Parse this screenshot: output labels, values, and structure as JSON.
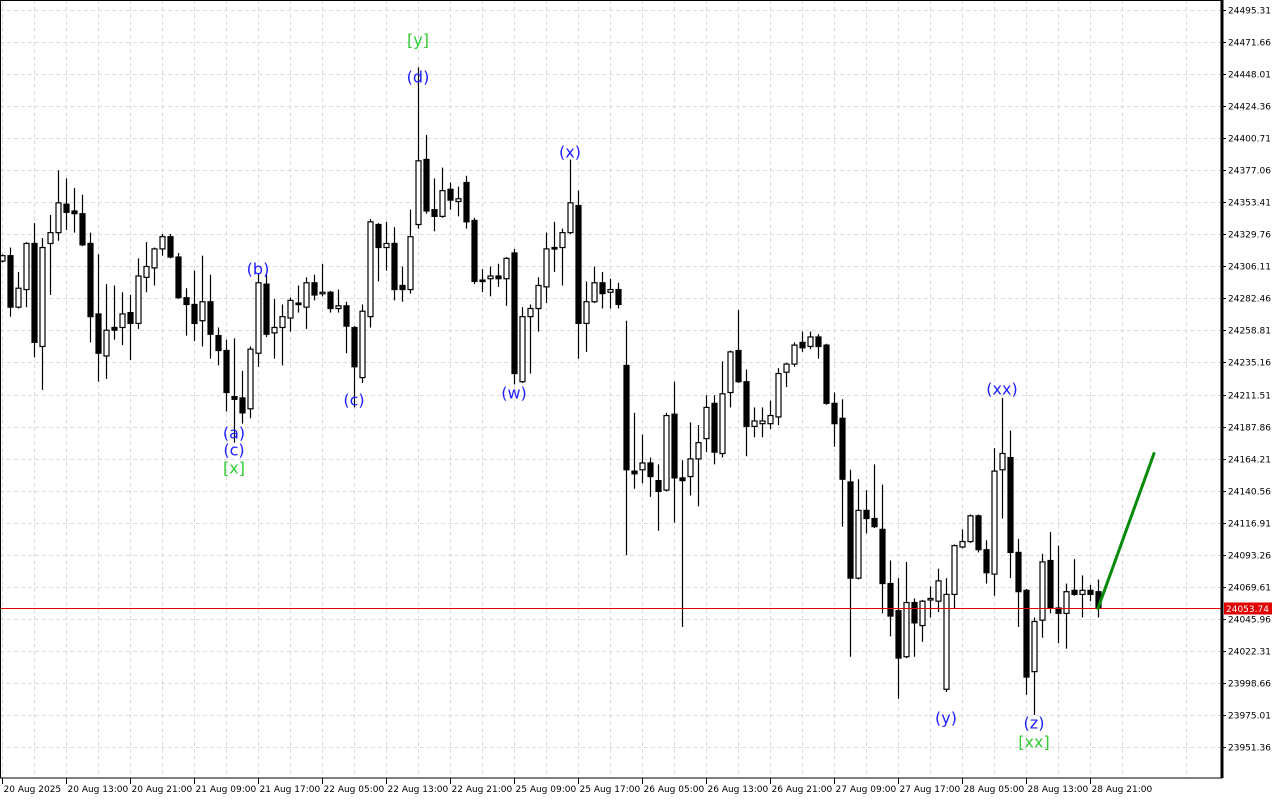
{
  "chart_data": {
    "type": "candlestick",
    "ylim": [
      23928.5,
      24502.7
    ],
    "grid": true,
    "colors": {
      "bull_body": "#ffffff",
      "bear_body": "#000000",
      "wick": "#000000",
      "grid": "#dcdcdc",
      "current_price_line": "#e00000",
      "forecast_line": "#0a8a0a",
      "wave_minor": "#2020ff",
      "wave_major": "#33cc33"
    },
    "y_ticks": [
      "24495.31",
      "24471.66",
      "24448.01",
      "24424.36",
      "24400.71",
      "24377.06",
      "24353.41",
      "24329.76",
      "24306.11",
      "24282.46",
      "24258.81",
      "24235.16",
      "24211.51",
      "24187.86",
      "24164.21",
      "24140.56",
      "24116.91",
      "24093.26",
      "24069.61",
      "24045.96",
      "24022.31",
      "23998.66",
      "23975.01",
      "23951.36"
    ],
    "x_ticks": [
      {
        "bar": 0,
        "label": "20 Aug 2025"
      },
      {
        "bar": 8,
        "label": "20 Aug 13:00"
      },
      {
        "bar": 16,
        "label": "20 Aug 21:00"
      },
      {
        "bar": 24,
        "label": "21 Aug 09:00"
      },
      {
        "bar": 32,
        "label": "21 Aug 17:00"
      },
      {
        "bar": 40,
        "label": "22 Aug 05:00"
      },
      {
        "bar": 48,
        "label": "22 Aug 13:00"
      },
      {
        "bar": 56,
        "label": "22 Aug 21:00"
      },
      {
        "bar": 64,
        "label": "25 Aug 09:00"
      },
      {
        "bar": 72,
        "label": "25 Aug 17:00"
      },
      {
        "bar": 80,
        "label": "26 Aug 05:00"
      },
      {
        "bar": 88,
        "label": "26 Aug 13:00"
      },
      {
        "bar": 96,
        "label": "26 Aug 21:00"
      },
      {
        "bar": 104,
        "label": "27 Aug 09:00"
      },
      {
        "bar": 112,
        "label": "27 Aug 17:00"
      },
      {
        "bar": 120,
        "label": "28 Aug 05:00"
      },
      {
        "bar": 128,
        "label": "28 Aug 13:00"
      },
      {
        "bar": 136,
        "label": "28 Aug 21:00"
      }
    ],
    "current_price": {
      "value": 24053.74,
      "label": "24053.74"
    },
    "forecast": {
      "from": {
        "bar": 137,
        "price": 24053.74
      },
      "to": {
        "bar": 144,
        "price": 24168
      }
    },
    "wave_labels": [
      {
        "text": "(a)",
        "bar": 29,
        "price": 24183.1,
        "level": "minor"
      },
      {
        "text": "(c)",
        "bar": 29,
        "price": 24170.6,
        "level": "minor"
      },
      {
        "text": "[x]",
        "bar": 29,
        "price": 24157.3,
        "level": "major"
      },
      {
        "text": "(b)",
        "bar": 32,
        "price": 24304.2,
        "level": "minor"
      },
      {
        "text": "(c)",
        "bar": 44,
        "price": 24207.5,
        "level": "minor"
      },
      {
        "text": "[y]",
        "bar": 52,
        "price": 24473.2,
        "level": "major"
      },
      {
        "text": "(d)",
        "bar": 52,
        "price": 24445.9,
        "level": "minor"
      },
      {
        "text": "(w)",
        "bar": 64,
        "price": 24212.6,
        "level": "minor"
      },
      {
        "text": "(x)",
        "bar": 71,
        "price": 24390.5,
        "level": "minor"
      },
      {
        "text": "(xx)",
        "bar": 125,
        "price": 24215.6,
        "level": "minor"
      },
      {
        "text": "(y)",
        "bar": 118,
        "price": 23972.7,
        "level": "minor"
      },
      {
        "text": "(z)",
        "bar": 129,
        "price": 23969.1,
        "level": "minor"
      },
      {
        "text": "[xx]",
        "bar": 129,
        "price": 23955.0,
        "level": "major"
      }
    ],
    "ohlc_fields": [
      "open",
      "high",
      "low",
      "close"
    ],
    "ohlc": [
      [
        24310,
        24315,
        24309,
        24314
      ],
      [
        24314,
        24320,
        24269,
        24276
      ],
      [
        24276,
        24302,
        24275,
        24290
      ],
      [
        24289,
        24324,
        24276,
        24323
      ],
      [
        24323,
        24338,
        24239,
        24250
      ],
      [
        24247,
        24327,
        24215,
        24320
      ],
      [
        24323,
        24344,
        24285,
        24331
      ],
      [
        24331,
        24377,
        24325,
        24353
      ],
      [
        24352,
        24371,
        24333,
        24346
      ],
      [
        24347,
        24364,
        24331,
        24345
      ],
      [
        24345,
        24359,
        24321,
        24322
      ],
      [
        24323,
        24331,
        24250,
        24269
      ],
      [
        24271,
        24315,
        24221,
        24242
      ],
      [
        24240,
        24293,
        24223,
        24259
      ],
      [
        24261,
        24292,
        24252,
        24259
      ],
      [
        24261,
        24287,
        24248,
        24271
      ],
      [
        24272,
        24285,
        24237,
        24264
      ],
      [
        24264,
        24312,
        24260,
        24299
      ],
      [
        24298,
        24324,
        24287,
        24306
      ],
      [
        24305,
        24320,
        24292,
        24319
      ],
      [
        24319,
        24330,
        24314,
        24328
      ],
      [
        24328,
        24330,
        24312,
        24313
      ],
      [
        24313,
        24316,
        24282,
        24283
      ],
      [
        24283,
        24290,
        24255,
        24278
      ],
      [
        24278,
        24303,
        24251,
        24264
      ],
      [
        24266,
        24314,
        24247,
        24280
      ],
      [
        24280,
        24300,
        24238,
        24256
      ],
      [
        24255,
        24261,
        24233,
        24244
      ],
      [
        24244,
        24252,
        24199,
        24213
      ],
      [
        24210,
        24253,
        24176,
        24208
      ],
      [
        24209,
        24229,
        24190,
        24198
      ],
      [
        24201,
        24247,
        24194,
        24245
      ],
      [
        24242,
        24301,
        24232,
        24294
      ],
      [
        24293,
        24300,
        24254,
        24256
      ],
      [
        24257,
        24282,
        24238,
        24261
      ],
      [
        24261,
        24278,
        24233,
        24269
      ],
      [
        24268,
        24283,
        24258,
        24281
      ],
      [
        24279,
        24292,
        24272,
        24278
      ],
      [
        24276,
        24298,
        24260,
        24294
      ],
      [
        24294,
        24300,
        24281,
        24285
      ],
      [
        24286,
        24308,
        24284,
        24287
      ],
      [
        24287,
        24288,
        24272,
        24275
      ],
      [
        24275,
        24289,
        24272,
        24277
      ],
      [
        24277,
        24280,
        24242,
        24262
      ],
      [
        24261,
        24262,
        24202,
        24232
      ],
      [
        24224,
        24278,
        24220,
        24273
      ],
      [
        24269,
        24341,
        24261,
        24339
      ],
      [
        24337,
        24338,
        24295,
        24320
      ],
      [
        24320,
        24339,
        24303,
        24323
      ],
      [
        24323,
        24335,
        24281,
        24289
      ],
      [
        24292,
        24306,
        24280,
        24289
      ],
      [
        24289,
        24348,
        24286,
        24328
      ],
      [
        24337,
        24453,
        24334,
        24384
      ],
      [
        24385,
        24403,
        24345,
        24347
      ],
      [
        24348,
        24371,
        24332,
        24343
      ],
      [
        24343,
        24379,
        24342,
        24362
      ],
      [
        24363,
        24368,
        24348,
        24355
      ],
      [
        24354,
        24365,
        24343,
        24356
      ],
      [
        24368,
        24373,
        24334,
        24339
      ],
      [
        24340,
        24342,
        24293,
        24295
      ],
      [
        24296,
        24304,
        24287,
        24295
      ],
      [
        24297,
        24306,
        24284,
        24299
      ],
      [
        24299,
        24308,
        24291,
        24297
      ],
      [
        24297,
        24313,
        24277,
        24312
      ],
      [
        24316,
        24319,
        24219,
        24227
      ],
      [
        24221,
        24276,
        24220,
        24269
      ],
      [
        24269,
        24278,
        24227,
        24275
      ],
      [
        24275,
        24298,
        24258,
        24292
      ],
      [
        24291,
        24331,
        24279,
        24319
      ],
      [
        24320,
        24339,
        24302,
        24319
      ],
      [
        24320,
        24334,
        24292,
        24331
      ],
      [
        24331,
        24385,
        24330,
        24353
      ],
      [
        24351,
        24362,
        24238,
        24264
      ],
      [
        24264,
        24295,
        24243,
        24280
      ],
      [
        24280,
        24306,
        24279,
        24294
      ],
      [
        24294,
        24302,
        24275,
        24286
      ],
      [
        24287,
        24297,
        24275,
        24289
      ],
      [
        24289,
        24294,
        24275,
        24278
      ],
      [
        24233,
        24266,
        24093,
        24156
      ],
      [
        24155,
        24198,
        24142,
        24153
      ],
      [
        24156,
        24182,
        24146,
        24161
      ],
      [
        24161,
        24165,
        24136,
        24151
      ],
      [
        24148,
        24160,
        24111,
        24140
      ],
      [
        24141,
        24198,
        24140,
        24196
      ],
      [
        24197,
        24221,
        24117,
        24150
      ],
      [
        24150,
        24163,
        24040,
        24148
      ],
      [
        24151,
        24191,
        24137,
        24164
      ],
      [
        24164,
        24189,
        24129,
        24176
      ],
      [
        24179,
        24211,
        24169,
        24202
      ],
      [
        24205,
        24211,
        24160,
        24169
      ],
      [
        24168,
        24236,
        24165,
        24212
      ],
      [
        24213,
        24244,
        24202,
        24243
      ],
      [
        24244,
        24274,
        24220,
        24221
      ],
      [
        24221,
        24230,
        24166,
        24188
      ],
      [
        24188,
        24202,
        24180,
        24192
      ],
      [
        24190,
        24202,
        24180,
        24192
      ],
      [
        24190,
        24207,
        24186,
        24196
      ],
      [
        24195,
        24231,
        24189,
        24227
      ],
      [
        24228,
        24235,
        24217,
        24234
      ],
      [
        24234,
        24250,
        24232,
        24248
      ],
      [
        24250,
        24258,
        24243,
        24246
      ],
      [
        24247,
        24258,
        24245,
        24254
      ],
      [
        24254,
        24256,
        24238,
        24247
      ],
      [
        24248,
        24249,
        24204,
        24205
      ],
      [
        24205,
        24213,
        24173,
        24190
      ],
      [
        24194,
        24208,
        24114,
        24149
      ],
      [
        24147,
        24156,
        24018,
        24076
      ],
      [
        24076,
        24149,
        24075,
        24126
      ],
      [
        24126,
        24141,
        24109,
        24120
      ],
      [
        24120,
        24160,
        24113,
        24114
      ],
      [
        24112,
        24145,
        24050,
        24072
      ],
      [
        24072,
        24089,
        24033,
        24048
      ],
      [
        24052,
        24076,
        23987,
        24017
      ],
      [
        24018,
        24088,
        24017,
        24058
      ],
      [
        24058,
        24061,
        24018,
        24043
      ],
      [
        24041,
        24060,
        24029,
        24059
      ],
      [
        24060,
        24070,
        24047,
        24061
      ],
      [
        24059,
        24083,
        24051,
        24074
      ],
      [
        23994,
        24076,
        23992,
        24064
      ],
      [
        24064,
        24101,
        24054,
        24100
      ],
      [
        24099,
        24112,
        24098,
        24103
      ],
      [
        24103,
        24123,
        24102,
        24122
      ],
      [
        24122,
        24123,
        24095,
        24097
      ],
      [
        24097,
        24104,
        24072,
        24080
      ],
      [
        24079,
        24172,
        24063,
        24155
      ],
      [
        24156,
        24209,
        24120,
        24168
      ],
      [
        24165,
        24185,
        24076,
        24095
      ],
      [
        24095,
        24105,
        24040,
        24066
      ],
      [
        24067,
        24068,
        23990,
        24003
      ],
      [
        24007,
        24047,
        23975,
        24044
      ],
      [
        24045,
        24094,
        24032,
        24088
      ],
      [
        24089,
        24110,
        24050,
        24054
      ],
      [
        24054,
        24100,
        24028,
        24050
      ],
      [
        24050,
        24072,
        24024,
        24066
      ],
      [
        24067,
        24090,
        24063,
        24064
      ],
      [
        24064,
        24078,
        24047,
        24067
      ],
      [
        24067,
        24071,
        24059,
        24064
      ],
      [
        24066,
        24075,
        24047,
        24053.74
      ]
    ]
  }
}
